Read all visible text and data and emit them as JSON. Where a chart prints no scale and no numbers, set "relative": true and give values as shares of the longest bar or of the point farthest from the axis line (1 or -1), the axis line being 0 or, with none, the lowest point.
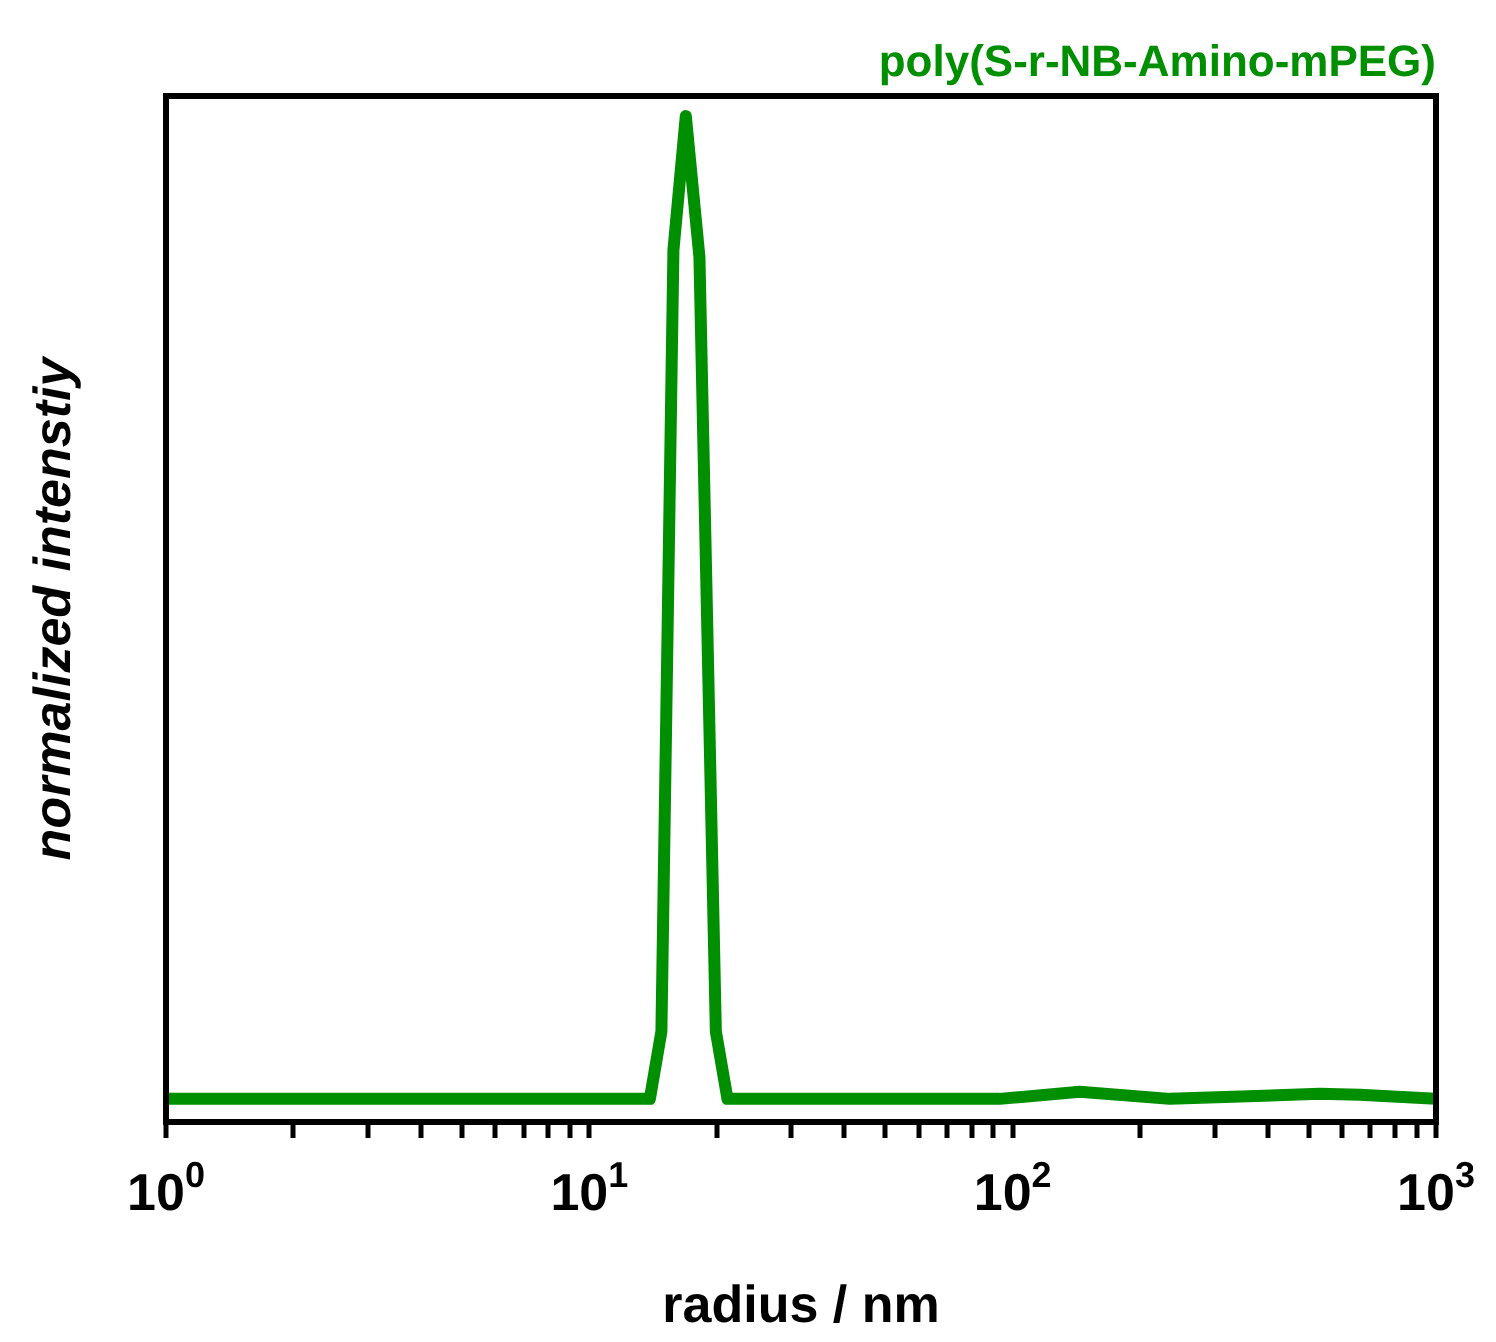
{
  "chart_data": {
    "type": "line",
    "xlabel": "radius / nm",
    "ylabel": "normalized intenstiy",
    "relative": true,
    "log": "x",
    "legend": "top right",
    "marker": "none",
    "line_style": "solid",
    "xlim": [
      1,
      1000
    ],
    "xticks": [
      {
        "value": 1,
        "label": "10$^{0}$"
      },
      {
        "value": 2,
        "label": null
      },
      {
        "value": 3,
        "label": null
      },
      {
        "value": 4,
        "label": null
      },
      {
        "value": 5,
        "label": null
      },
      {
        "value": 6,
        "label": null
      },
      {
        "value": 7,
        "label": null
      },
      {
        "value": 8,
        "label": null
      },
      {
        "value": 9,
        "label": null
      },
      {
        "value": 10,
        "label": "10$^{1}$"
      },
      {
        "value": 20,
        "label": null
      },
      {
        "value": 30,
        "label": null
      },
      {
        "value": 40,
        "label": null
      },
      {
        "value": 50,
        "label": null
      },
      {
        "value": 60,
        "label": null
      },
      {
        "value": 70,
        "label": null
      },
      {
        "value": 80,
        "label": null
      },
      {
        "value": 90,
        "label": null
      },
      {
        "value": 100,
        "label": "10$^{2}$"
      },
      {
        "value": 200,
        "label": null
      },
      {
        "value": 300,
        "label": null
      },
      {
        "value": 400,
        "label": null
      },
      {
        "value": 500,
        "label": null
      },
      {
        "value": 600,
        "label": null
      },
      {
        "value": 700,
        "label": null
      },
      {
        "value": 800,
        "label": null
      },
      {
        "value": 900,
        "label": null
      },
      {
        "value": 1000,
        "label": "10$^{3}$"
      }
    ],
    "series": [
      {
        "name": "poly(S-r-NB-Amino-mPEG)",
        "color": "#008f00",
        "x": [
          1,
          13.9,
          14.8,
          15.8,
          16.9,
          18.2,
          19.9,
          21.2,
          93,
          144,
          235,
          531,
          660,
          1000
        ],
        "values": [
          0.023,
          0.023,
          0.09,
          0.867,
          1,
          0.86,
          0.09,
          0.023,
          0.023,
          0.03,
          0.023,
          0.028,
          0.027,
          0.023
        ]
      }
    ]
  }
}
